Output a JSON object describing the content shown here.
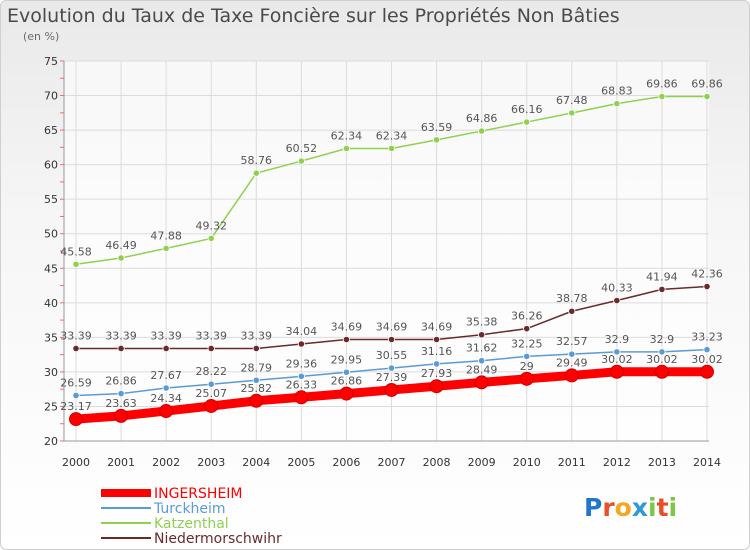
{
  "chart_data": {
    "type": "line",
    "title": "Evolution du Taux de Taxe Foncière sur les Propriétés Non Bâties",
    "subtitle": "(en %)",
    "x": [
      "2000",
      "2001",
      "2002",
      "2003",
      "2004",
      "2005",
      "2006",
      "2007",
      "2008",
      "2009",
      "2010",
      "2011",
      "2012",
      "2013",
      "2014"
    ],
    "ylim": [
      20,
      75
    ],
    "yticks": [
      20,
      25,
      30,
      35,
      40,
      45,
      50,
      55,
      60,
      65,
      70,
      75
    ],
    "grid": true,
    "legend_position": "bottom-left",
    "series": [
      {
        "name": "INGERSHEIM",
        "color": "#ff0000",
        "values": [
          23.17,
          23.63,
          24.34,
          25.07,
          25.82,
          26.33,
          26.86,
          27.39,
          27.93,
          28.49,
          29,
          29.49,
          30.02,
          30.02,
          30.02
        ],
        "labels": [
          "23.17",
          "23.63",
          "24.34",
          "25.07",
          "25.82",
          "26.33",
          "26.86",
          "27.39",
          "27.93",
          "28.49",
          "29",
          "29.49",
          "30.02",
          "30.02",
          "30.02"
        ]
      },
      {
        "name": "Turckheim",
        "color": "#5b9bd5",
        "values": [
          26.59,
          26.86,
          27.67,
          28.22,
          28.79,
          29.36,
          29.95,
          30.55,
          31.16,
          31.62,
          32.25,
          32.57,
          32.9,
          32.9,
          33.23
        ],
        "labels": [
          "26.59",
          "26.86",
          "27.67",
          "28.22",
          "28.79",
          "29.36",
          "29.95",
          "30.55",
          "31.16",
          "31.62",
          "32.25",
          "32.57",
          "32.9",
          "32.9",
          "33.23"
        ]
      },
      {
        "name": "Katzenthal",
        "color": "#8fd14f",
        "values": [
          45.58,
          46.49,
          47.88,
          49.32,
          58.76,
          60.52,
          62.34,
          62.34,
          63.59,
          64.86,
          66.16,
          67.48,
          68.83,
          69.86,
          69.86
        ],
        "labels": [
          "45.58",
          "46.49",
          "47.88",
          "49.32",
          "58.76",
          "60.52",
          "62.34",
          "62.34",
          "63.59",
          "64.86",
          "66.16",
          "67.48",
          "68.83",
          "69.86",
          "69.86"
        ]
      },
      {
        "name": "Niedermorschwihr",
        "color": "#6b2a2a",
        "values": [
          33.39,
          33.39,
          33.39,
          33.39,
          33.39,
          34.04,
          34.69,
          34.69,
          34.69,
          35.38,
          36.26,
          38.78,
          40.33,
          41.94,
          42.36
        ],
        "labels": [
          "33.39",
          "33.39",
          "33.39",
          "33.39",
          "33.39",
          "34.04",
          "34.69",
          "34.69",
          "34.69",
          "35.38",
          "36.26",
          "38.78",
          "40.33",
          "41.94",
          "42.36"
        ]
      }
    ]
  },
  "logo": {
    "text": "Proxiti",
    "letters": [
      "P",
      "r",
      "o",
      "x",
      "i",
      "t",
      "i"
    ],
    "colors": [
      "#1f77c9",
      "#e8502a",
      "#f5a623",
      "#2e9ad8",
      "#7ac943",
      "#e8502a",
      "#7ac943"
    ]
  }
}
